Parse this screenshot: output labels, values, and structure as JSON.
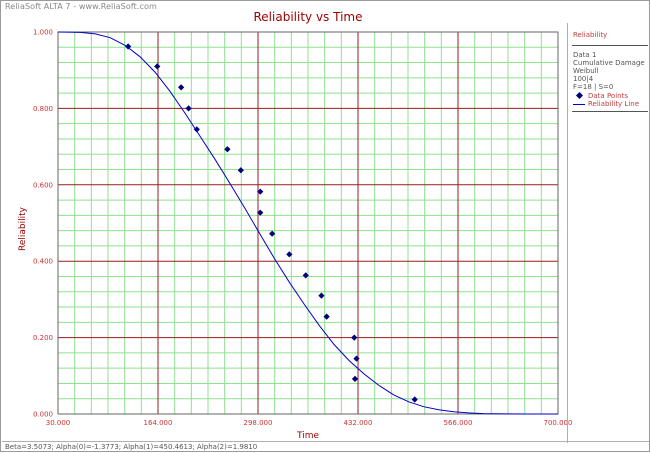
{
  "app": {
    "watermark": "ReliaSoft ALTA 7 - www.ReliaSoft.com"
  },
  "chart_data": {
    "type": "scatter",
    "title": "Reliability vs Time",
    "xlabel": "Time",
    "ylabel": "Reliability",
    "xlim": [
      30,
      700
    ],
    "ylim": [
      0,
      1
    ],
    "x_ticks": [
      "30.000",
      "164.000",
      "298.000",
      "432.000",
      "566.000",
      "700.000"
    ],
    "y_ticks": [
      "0.000",
      "0.200",
      "0.400",
      "0.600",
      "0.800",
      "1.000"
    ],
    "grid": true,
    "series": [
      {
        "name": "Data Points",
        "kind": "points",
        "color": "#00007a",
        "points": [
          [
            124,
            0.962
          ],
          [
            163,
            0.91
          ],
          [
            195,
            0.855
          ],
          [
            205,
            0.8
          ],
          [
            216,
            0.745
          ],
          [
            257,
            0.693
          ],
          [
            275,
            0.638
          ],
          [
            301,
            0.582
          ],
          [
            301,
            0.527
          ],
          [
            317,
            0.472
          ],
          [
            340,
            0.418
          ],
          [
            362,
            0.363
          ],
          [
            383,
            0.31
          ],
          [
            390,
            0.255
          ],
          [
            427,
            0.2
          ],
          [
            430,
            0.145
          ],
          [
            428,
            0.092
          ],
          [
            508,
            0.038
          ]
        ]
      },
      {
        "name": "Reliability Line",
        "kind": "line",
        "color": "#0000cc",
        "points": [
          [
            30,
            1.0
          ],
          [
            60,
            0.999
          ],
          [
            80,
            0.995
          ],
          [
            100,
            0.985
          ],
          [
            120,
            0.965
          ],
          [
            140,
            0.935
          ],
          [
            160,
            0.895
          ],
          [
            180,
            0.845
          ],
          [
            200,
            0.788
          ],
          [
            220,
            0.728
          ],
          [
            240,
            0.668
          ],
          [
            260,
            0.605
          ],
          [
            280,
            0.54
          ],
          [
            300,
            0.473
          ],
          [
            320,
            0.407
          ],
          [
            340,
            0.345
          ],
          [
            360,
            0.287
          ],
          [
            380,
            0.232
          ],
          [
            400,
            0.182
          ],
          [
            420,
            0.14
          ],
          [
            440,
            0.105
          ],
          [
            460,
            0.075
          ],
          [
            480,
            0.05
          ],
          [
            500,
            0.032
          ],
          [
            520,
            0.019
          ],
          [
            540,
            0.011
          ],
          [
            560,
            0.006
          ],
          [
            580,
            0.003
          ],
          [
            600,
            0.001
          ],
          [
            630,
            0.0003
          ],
          [
            660,
            0.0
          ],
          [
            700,
            0.0
          ]
        ]
      }
    ]
  },
  "legend": {
    "title": "Reliability",
    "lines": [
      "Data 1",
      "Cumulative Damage",
      "Weibull",
      "100|4",
      "F=18 | S=0"
    ],
    "entries": [
      "Data Points",
      "Reliability Line"
    ]
  },
  "footer": {
    "text": "Beta=3.5073; Alpha(0)=-1.3773; Alpha(1)=450.4613; Alpha(2)=1.9810"
  },
  "colors": {
    "major_grid": "#9b1c1c",
    "minor_grid": "#8fe08f",
    "title": "#990000",
    "axis_label": "#990000",
    "tick_label": "#cc3333"
  }
}
